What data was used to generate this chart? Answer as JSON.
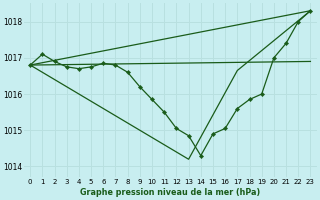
{
  "title": "Graphe pression niveau de la mer (hPa)",
  "background_color": "#c8eef0",
  "grid_color": "#b8e0e0",
  "line_color": "#1a5c1a",
  "xlim": [
    -0.5,
    23.5
  ],
  "ylim": [
    1013.7,
    1018.5
  ],
  "yticks": [
    1014,
    1015,
    1016,
    1017,
    1018
  ],
  "xticks": [
    0,
    1,
    2,
    3,
    4,
    5,
    6,
    7,
    8,
    9,
    10,
    11,
    12,
    13,
    14,
    15,
    16,
    17,
    18,
    19,
    20,
    21,
    22,
    23
  ],
  "series_main": {
    "x": [
      0,
      1,
      2,
      3,
      4,
      5,
      6,
      7,
      8,
      9,
      10,
      11,
      12,
      13,
      14,
      15,
      16,
      17,
      18,
      19,
      20,
      21,
      22,
      23
    ],
    "y": [
      1016.8,
      1017.1,
      1016.9,
      1016.75,
      1016.7,
      1016.75,
      1016.85,
      1016.8,
      1016.6,
      1016.2,
      1015.85,
      1015.5,
      1015.05,
      1014.85,
      1014.3,
      1014.9,
      1015.05,
      1015.6,
      1015.85,
      1016.0,
      1017.0,
      1017.4,
      1018.0,
      1018.3
    ]
  },
  "line_upper": {
    "x": [
      0,
      23
    ],
    "y": [
      1016.8,
      1018.3
    ]
  },
  "line_middle": {
    "x": [
      0,
      23
    ],
    "y": [
      1016.8,
      1016.9
    ]
  },
  "line_lower": {
    "x": [
      0,
      13,
      17,
      23
    ],
    "y": [
      1016.8,
      1014.2,
      1016.65,
      1018.3
    ]
  }
}
